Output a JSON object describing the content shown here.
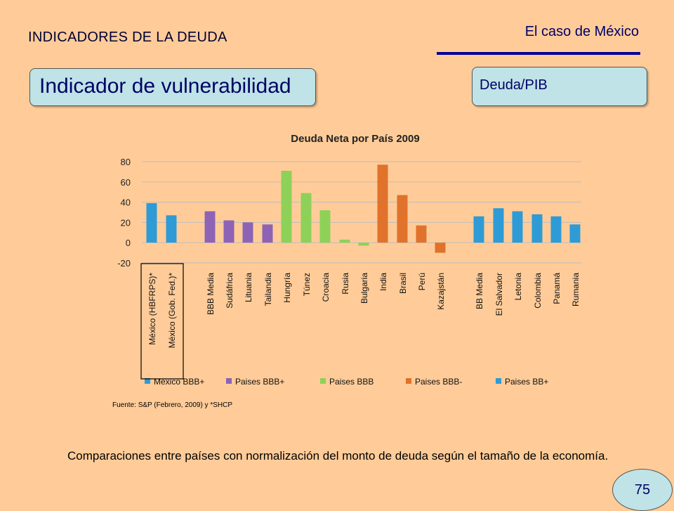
{
  "header": {
    "title": "INDICADORES DE LA DEUDA",
    "case": "El caso de México",
    "rule_color": "#000099"
  },
  "indicator_box": {
    "label": "Indicador de vulnerabilidad"
  },
  "ratio_box": {
    "label": "Deuda/PIB"
  },
  "chart_data": {
    "type": "bar",
    "title": "Deuda Neta por País 2009",
    "xlabel": "",
    "ylabel": "",
    "ylim": [
      -20,
      80
    ],
    "yticks": [
      80,
      60,
      40,
      20,
      0,
      -20
    ],
    "grid": true,
    "legend_position": "bottom",
    "categories": [
      "México (HBFRPS)*",
      "México (Gob. Fed.)*",
      "BBB Media",
      "Sudáfrica",
      "Lituania",
      "Tailandia",
      "Hungría",
      "Túnez",
      "Croacia",
      "Rusia",
      "Bulgaria",
      "India",
      "Brasil",
      "Perú",
      "Kazajstán",
      "BB Media",
      "El Salvador",
      "Letonia",
      "Colombia",
      "Panamá",
      "Rumania"
    ],
    "series": [
      {
        "name": "México BBB+",
        "color": "#2E9BD6",
        "values": [
          39,
          27,
          null,
          null,
          null,
          null,
          null,
          null,
          null,
          null,
          null,
          null,
          null,
          null,
          null,
          null,
          null,
          null,
          null,
          null,
          null
        ]
      },
      {
        "name": "Paises BBB+",
        "color": "#8E63B5",
        "values": [
          null,
          null,
          31,
          22,
          20,
          18,
          null,
          null,
          null,
          null,
          null,
          null,
          null,
          null,
          null,
          null,
          null,
          null,
          null,
          null,
          null
        ]
      },
      {
        "name": "Paises BBB",
        "color": "#8ED158",
        "values": [
          null,
          null,
          null,
          null,
          null,
          null,
          71,
          49,
          32,
          3,
          -3,
          null,
          null,
          null,
          null,
          null,
          null,
          null,
          null,
          null,
          null
        ]
      },
      {
        "name": "Paises BBB-",
        "color": "#E0722B",
        "values": [
          null,
          null,
          null,
          null,
          null,
          null,
          null,
          null,
          null,
          null,
          null,
          77,
          47,
          17,
          -10,
          null,
          null,
          null,
          null,
          null,
          null
        ]
      },
      {
        "name": "Paises BB+",
        "color": "#2E9BD6",
        "values": [
          null,
          null,
          null,
          null,
          null,
          null,
          null,
          null,
          null,
          null,
          null,
          null,
          null,
          null,
          null,
          26,
          34,
          31,
          28,
          26,
          18
        ]
      }
    ]
  },
  "source": "Fuente: S&P (Febrero, 2009) y *SHCP",
  "description": "Comparaciones entre países con normalización del monto de deuda según el tamaño de la economía.",
  "page_number": "75"
}
